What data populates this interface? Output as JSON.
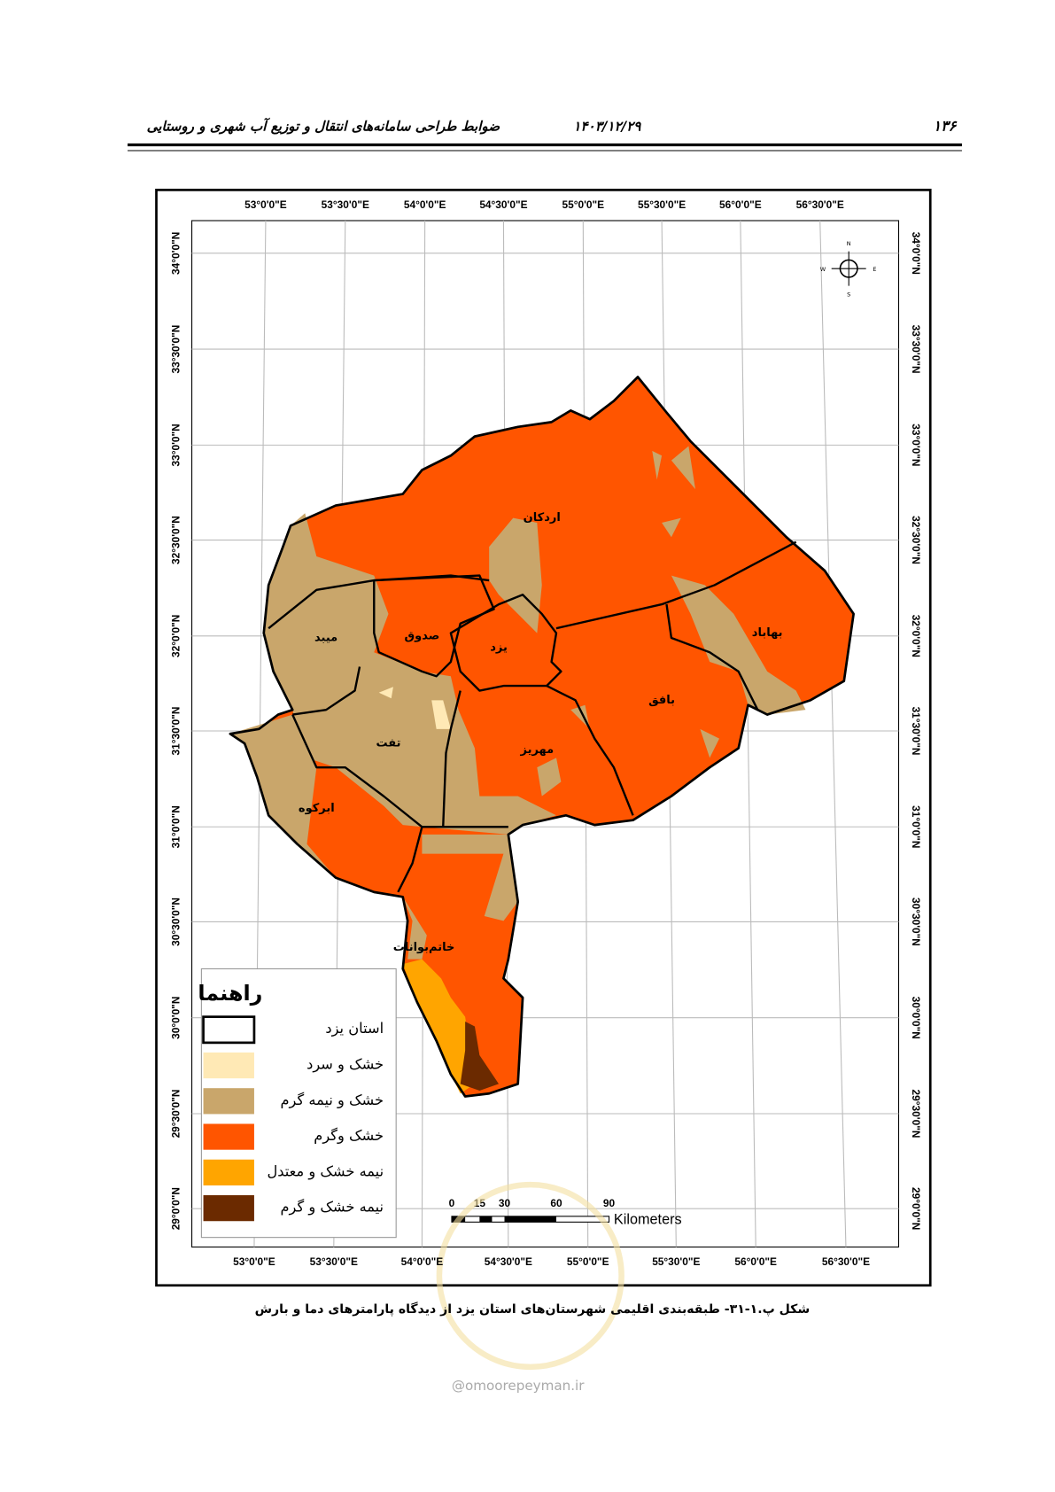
{
  "header": {
    "page_number": "۱۳۶",
    "date": "۱۴۰۳/۱۲/۲۹",
    "title": "ضوابط طراحی سامانه‌های انتقال و توزیع آب شهری و روستایی"
  },
  "map": {
    "top_labels": [
      "53°0'0\"E",
      "53°30'0\"E",
      "54°0'0\"E",
      "54°30'0\"E",
      "55°0'0\"E",
      "55°30'0\"E",
      "56°0'0\"E",
      "56°30'0\"E"
    ],
    "bottom_labels": [
      "53°0'0\"E",
      "53°30'0\"E",
      "54°0'0\"E",
      "54°30'0\"E",
      "55°0'0\"E",
      "55°30'0\"E",
      "56°0'0\"E",
      "56°30'0\"E"
    ],
    "left_labels": [
      "34°0'0\"N",
      "33°30'0\"N",
      "33°0'0\"N",
      "32°30'0\"N",
      "32°0'0\"N",
      "31°30'0\"N",
      "31°0'0\"N",
      "30°30'0\"N",
      "30°0'0\"N",
      "29°30'0\"N",
      "29°0'0\"N"
    ],
    "right_labels": [
      "34°0'0\"N",
      "33°30'0\"N",
      "33°0'0\"N",
      "32°30'0\"N",
      "32°0'0\"N",
      "31°30'0\"N",
      "31°0'0\"N",
      "30°30'0\"N",
      "30°0'0\"N",
      "29°30'0\"N",
      "29°0'0\"N"
    ],
    "compass": [
      "N",
      "E",
      "S",
      "W"
    ],
    "districts": [
      "اردکان",
      "میبد",
      "صدوق",
      "یزد",
      "بهاباد",
      "بافق",
      "تفت",
      "مهریز",
      "ابرکوه",
      "خاتم‌بوانات"
    ],
    "legend": {
      "title": "راهنما",
      "items": [
        {
          "label": "استان یزد",
          "color": "#ffffff"
        },
        {
          "label": "خشک و سرد",
          "color": "#ffe9b5"
        },
        {
          "label": "خشک و نیمه گرم",
          "color": "#c9a66b"
        },
        {
          "label": "خشک وگرم",
          "color": "#ff5500"
        },
        {
          "label": "نیمه خشک و معتدل",
          "color": "#ffa500"
        },
        {
          "label": "نیمه خشک و گرم",
          "color": "#6b2a00"
        }
      ]
    },
    "scale": {
      "ticks": [
        0,
        15,
        30,
        60,
        90
      ],
      "unit": "Kilometers"
    }
  },
  "caption": "شکل پ.۱-۳۱- طبقه‌بندی اقلیمی شهرستان‌های استان یزد از دیدگاه پارامترهای دما و بارش",
  "watermark": "@omoorepeyman.ir"
}
